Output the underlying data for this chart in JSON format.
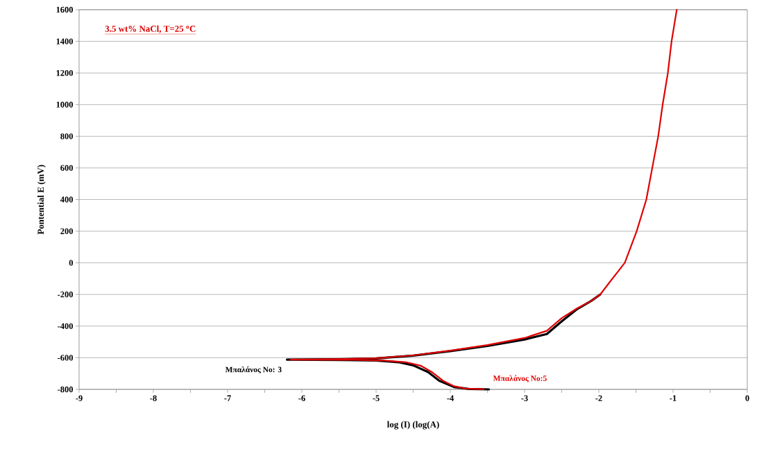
{
  "chart_data": {
    "type": "line",
    "xlabel": "log (I) (log(A)",
    "ylabel": "Pontential   E (mV)",
    "annotations": [
      "**3.5 wt% NaCl, T=25 $^{o}$C**"
    ],
    "series": [
      {
        "name": "Μπαλάνος No: 3",
        "color": "#000000",
        "x": [
          -3.48,
          -3.75,
          -3.95,
          -4.15,
          -4.3,
          -4.5,
          -4.7,
          -5,
          -5.5,
          -6.2,
          -5.5,
          -5,
          -4.5,
          -4,
          -3.5,
          -3,
          -2.7,
          -2.5,
          -2.3,
          -2.1,
          -1.98
        ],
        "values": [
          -800,
          -797,
          -785,
          -745,
          -690,
          -648,
          -628,
          -618,
          -614,
          -612,
          -610,
          -604,
          -587,
          -558,
          -525,
          -485,
          -450,
          -370,
          -295,
          -240,
          -200
        ]
      },
      {
        "name": "Μπαλάνος No:5",
        "color": "#e00000",
        "x": [
          -3.55,
          -3.8,
          -3.95,
          -4.1,
          -4.25,
          -4.4,
          -4.6,
          -4.9,
          -5.3,
          -6.15,
          -5.5,
          -5,
          -4.5,
          -4,
          -3.5,
          -3,
          -2.7,
          -2.5,
          -2.3,
          -2.1,
          -1.98,
          -1.85,
          -1.75,
          -1.65,
          -1.49,
          -1.36,
          -1.28,
          -1.2,
          -1.14,
          -1.07,
          -1.02,
          -0.95
        ],
        "values": [
          -798,
          -795,
          -780,
          -745,
          -690,
          -650,
          -628,
          -617,
          -613,
          -612,
          -609,
          -603,
          -585,
          -555,
          -520,
          -475,
          -430,
          -350,
          -290,
          -240,
          -200,
          -120,
          -60,
          0,
          200,
          400,
          600,
          800,
          1000,
          1200,
          1400,
          1600
        ]
      }
    ],
    "xlim": [
      -9,
      0
    ],
    "ylim": [
      -800,
      1600
    ],
    "xticks": [
      -9,
      {
        "value": -8.5,
        "label": null
      },
      -8,
      {
        "value": -7.5,
        "label": null
      },
      -7,
      {
        "value": -6.5,
        "label": null
      },
      -6,
      {
        "value": -5.5,
        "label": null
      },
      -5,
      {
        "value": -4.5,
        "label": null
      },
      -4,
      {
        "value": -3.5,
        "label": null
      },
      -3,
      {
        "value": -2.5,
        "label": null
      },
      -2,
      {
        "value": -1.5,
        "label": null
      },
      -1,
      {
        "value": -0.5,
        "label": null
      },
      0
    ],
    "yticks": [
      -800,
      -600,
      -400,
      -200,
      0,
      200,
      400,
      600,
      800,
      1000,
      1200,
      1400,
      1600
    ],
    "grid": "y"
  }
}
